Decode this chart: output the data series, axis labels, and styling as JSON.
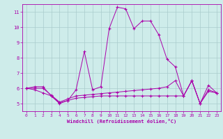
{
  "xlabel": "Windchill (Refroidissement éolien,°C)",
  "xlim": [
    -0.5,
    23.5
  ],
  "ylim": [
    4.5,
    11.5
  ],
  "yticks": [
    5,
    6,
    7,
    8,
    9,
    10,
    11
  ],
  "xticks": [
    0,
    1,
    2,
    3,
    4,
    5,
    6,
    7,
    8,
    9,
    10,
    11,
    12,
    13,
    14,
    15,
    16,
    17,
    18,
    19,
    20,
    21,
    22,
    23
  ],
  "background_color": "#ceecea",
  "line_color": "#aa00aa",
  "grid_color": "#aacccc",
  "lines": [
    {
      "x": [
        0,
        1,
        2,
        3,
        4,
        5,
        6,
        7,
        8,
        9,
        10,
        11,
        12,
        13,
        14,
        15,
        16,
        17,
        18,
        19,
        20,
        21,
        22,
        23
      ],
      "y": [
        6.0,
        6.1,
        6.1,
        5.5,
        5.0,
        5.2,
        5.9,
        8.4,
        5.9,
        6.1,
        9.9,
        11.3,
        11.2,
        9.9,
        10.4,
        10.4,
        9.5,
        7.9,
        7.4,
        5.5,
        6.5,
        5.0,
        6.2,
        5.7
      ]
    },
    {
      "x": [
        0,
        1,
        2,
        3,
        4,
        5,
        6,
        7,
        8,
        9,
        10,
        11,
        12,
        13,
        14,
        15,
        16,
        17,
        18,
        19,
        20,
        21,
        22,
        23
      ],
      "y": [
        6.0,
        6.0,
        6.0,
        5.55,
        5.1,
        5.3,
        5.5,
        5.55,
        5.6,
        5.65,
        5.7,
        5.75,
        5.8,
        5.85,
        5.9,
        5.95,
        6.0,
        6.1,
        6.5,
        5.5,
        6.5,
        5.0,
        5.9,
        5.7
      ]
    },
    {
      "x": [
        0,
        1,
        2,
        3,
        4,
        5,
        6,
        7,
        8,
        9,
        10,
        11,
        12,
        13,
        14,
        15,
        16,
        17,
        18,
        19,
        20,
        21,
        22,
        23
      ],
      "y": [
        6.0,
        5.9,
        5.7,
        5.5,
        5.05,
        5.2,
        5.35,
        5.4,
        5.45,
        5.5,
        5.5,
        5.5,
        5.5,
        5.5,
        5.5,
        5.5,
        5.5,
        5.5,
        5.5,
        5.5,
        6.5,
        5.0,
        5.8,
        5.7
      ]
    }
  ]
}
